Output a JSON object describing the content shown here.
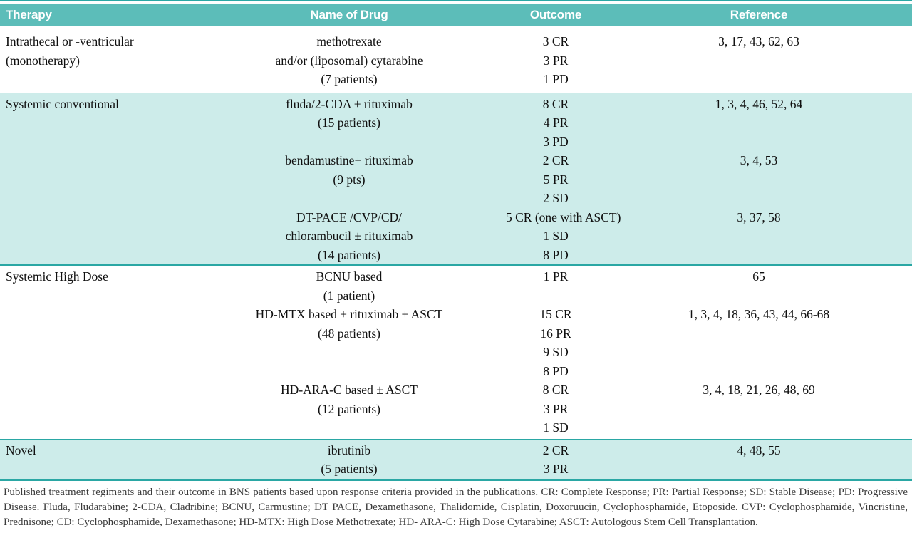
{
  "theme": {
    "header_bg": "#5cbdb9",
    "header_text": "#ffffff",
    "shade_bg": "#cdecea",
    "rule": "#2aa7a4",
    "body_text": "#101010",
    "caption_text": "#3c3c3c"
  },
  "table": {
    "header": [
      "Therapy",
      "Name of Drug",
      "Outcome",
      "Reference"
    ],
    "bands": [
      {
        "shaded": false,
        "therapy_lines": [
          "Intrathecal or -ventricular",
          "(monotherapy)"
        ],
        "entries": [
          {
            "drug_lines": [
              "methotrexate",
              "and/or (liposomal) cytarabine",
              "(7 patients)"
            ],
            "outcome_lines": [
              "3 CR",
              "3 PR",
              "1 PD"
            ],
            "reference": "3, 17, 43, 62, 63"
          }
        ]
      },
      {
        "shaded": true,
        "therapy_lines": [
          "Systemic conventional"
        ],
        "entries": [
          {
            "drug_lines": [
              "fluda/2-CDA ± rituximab",
              "(15 patients)"
            ],
            "outcome_lines": [
              "8 CR",
              "4 PR",
              "3 PD"
            ],
            "reference": "1, 3, 4, 46, 52, 64"
          },
          {
            "drug_lines": [
              "bendamustine+ rituximab",
              "(9 pts)"
            ],
            "outcome_lines": [
              "2 CR",
              "5 PR",
              "2 SD"
            ],
            "reference": "3, 4, 53"
          },
          {
            "drug_lines": [
              "DT-PACE /CVP/CD/",
              "chlorambucil ± rituximab",
              "(14 patients)"
            ],
            "outcome_lines": [
              "5 CR (one with ASCT)",
              "1 SD",
              "8 PD"
            ],
            "reference": "3, 37, 58"
          }
        ]
      },
      {
        "shaded": false,
        "therapy_lines": [
          "Systemic High Dose"
        ],
        "entries": [
          {
            "drug_lines": [
              "BCNU based",
              "(1 patient)"
            ],
            "outcome_lines": [
              "1 PR"
            ],
            "reference": "65"
          },
          {
            "drug_lines": [
              "HD-MTX based ± rituximab ± ASCT",
              "(48 patients)"
            ],
            "outcome_lines": [
              "15 CR",
              "16 PR",
              "9 SD",
              "8 PD"
            ],
            "reference": "1, 3, 4, 18, 36, 43, 44, 66-68"
          },
          {
            "drug_lines": [
              "HD-ARA-C based ± ASCT",
              "(12 patients)"
            ],
            "outcome_lines": [
              "8 CR",
              "3 PR",
              "1 SD"
            ],
            "reference": "3, 4, 18, 21, 26, 48, 69"
          }
        ]
      },
      {
        "shaded": true,
        "therapy_lines": [
          "Novel"
        ],
        "entries": [
          {
            "drug_lines": [
              "ibrutinib",
              "(5 patients)"
            ],
            "outcome_lines": [
              "2 CR",
              "3 PR"
            ],
            "reference": "4, 48, 55"
          }
        ]
      }
    ]
  },
  "caption": {
    "text": "Published treatment regiments and their outcome in BNS patients based upon response criteria provided in the publications. CR: Complete Response; PR: Partial Response; SD: Stable Disease; PD: Progressive Disease. Fluda, Fludarabine; 2-CDA, Cladribine; BCNU, Carmustine; DT PACE, Dexamethasone, Thalidomide, Cisplatin, Doxoruucin, Cyclophosphamide, Etoposide. CVP: Cyclophosphamide, Vincristine, Prednisone; CD: Cyclophosphamide, Dexamethasone; HD-MTX: High Dose Methotrexate; HD- ARA-C: High Dose Cytarabine; ASCT: Autologous Stem Cell Transplantation."
  }
}
